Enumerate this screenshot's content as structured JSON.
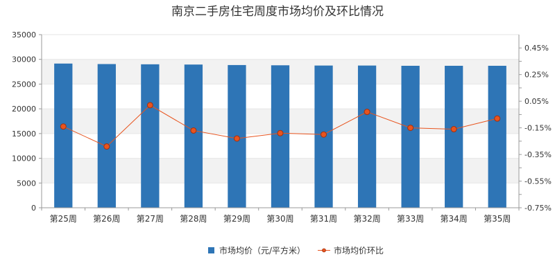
{
  "chart_data": {
    "type": "bar+line",
    "title": "南京二手房住宅周度市场均价及环比情况",
    "categories": [
      "第25周",
      "第26周",
      "第27周",
      "第28周",
      "第29周",
      "第30周",
      "第31周",
      "第32周",
      "第33周",
      "第34周",
      "第35周"
    ],
    "series": [
      {
        "name": "市场均价（元/平方米）",
        "type": "bar",
        "axis": "left",
        "color": "#2E75B6",
        "values": [
          29150,
          29050,
          29000,
          28950,
          28850,
          28800,
          28750,
          28750,
          28700,
          28700,
          28700
        ]
      },
      {
        "name": "市场均价环比",
        "type": "line",
        "axis": "right",
        "color": "#E8541E",
        "marker_fill": "#E8541E",
        "marker_stroke": "#A03010",
        "values": [
          -0.14,
          -0.29,
          0.02,
          -0.17,
          -0.23,
          -0.19,
          -0.2,
          -0.03,
          -0.15,
          -0.16,
          -0.08
        ]
      }
    ],
    "left_axis": {
      "min": 0,
      "max": 35000,
      "ticks": [
        "0",
        "5000",
        "10000",
        "15000",
        "20000",
        "25000",
        "30000",
        "35000"
      ]
    },
    "right_axis": {
      "min": -0.75,
      "max": 0.55,
      "labeled_ticks": [
        -0.75,
        -0.55,
        -0.35,
        -0.15,
        0.05,
        0.25,
        0.45
      ],
      "labels": [
        "-0.75%",
        "-0.55%",
        "-0.35%",
        "-0.15%",
        "0.05%",
        "0.25%",
        "0.45%"
      ]
    },
    "grid": "horizontal bands",
    "legend_position": "bottom"
  }
}
